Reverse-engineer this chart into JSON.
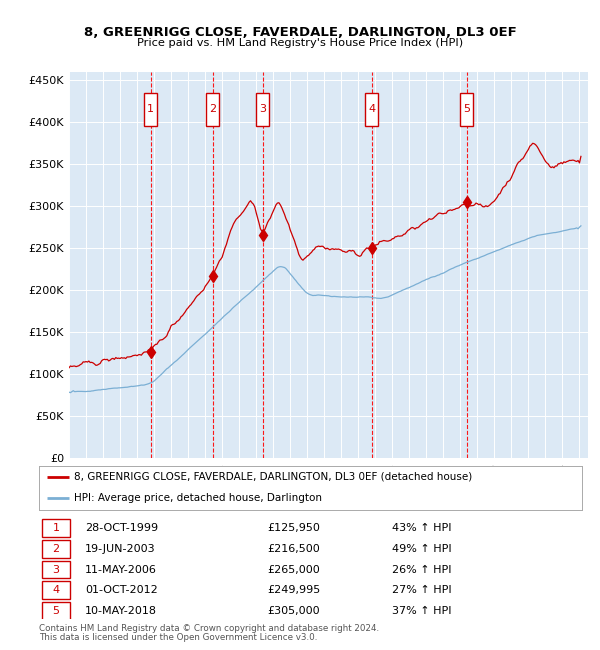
{
  "title": "8, GREENRIGG CLOSE, FAVERDALE, DARLINGTON, DL3 0EF",
  "subtitle": "Price paid vs. HM Land Registry's House Price Index (HPI)",
  "ylim": [
    0,
    460000
  ],
  "yticks": [
    0,
    50000,
    100000,
    150000,
    200000,
    250000,
    300000,
    350000,
    400000,
    450000
  ],
  "ytick_labels": [
    "£0",
    "£50K",
    "£100K",
    "£150K",
    "£200K",
    "£250K",
    "£300K",
    "£350K",
    "£400K",
    "£450K"
  ],
  "background_color": "#dce9f5",
  "grid_color": "#ffffff",
  "red_line_color": "#cc0000",
  "blue_line_color": "#7bafd4",
  "sale_prices": [
    125950,
    216500,
    265000,
    249995,
    305000
  ],
  "sale_labels": [
    "1",
    "2",
    "3",
    "4",
    "5"
  ],
  "sale_pct": [
    "43% ↑ HPI",
    "49% ↑ HPI",
    "26% ↑ HPI",
    "27% ↑ HPI",
    "37% ↑ HPI"
  ],
  "sale_date_labels": [
    "28-OCT-1999",
    "19-JUN-2003",
    "11-MAY-2006",
    "01-OCT-2012",
    "10-MAY-2018"
  ],
  "sale_price_labels": [
    "£125,950",
    "£216,500",
    "£265,000",
    "£249,995",
    "£305,000"
  ],
  "legend_red": "8, GREENRIGG CLOSE, FAVERDALE, DARLINGTON, DL3 0EF (detached house)",
  "legend_blue": "HPI: Average price, detached house, Darlington",
  "footer1": "Contains HM Land Registry data © Crown copyright and database right 2024.",
  "footer2": "This data is licensed under the Open Government Licence v3.0."
}
